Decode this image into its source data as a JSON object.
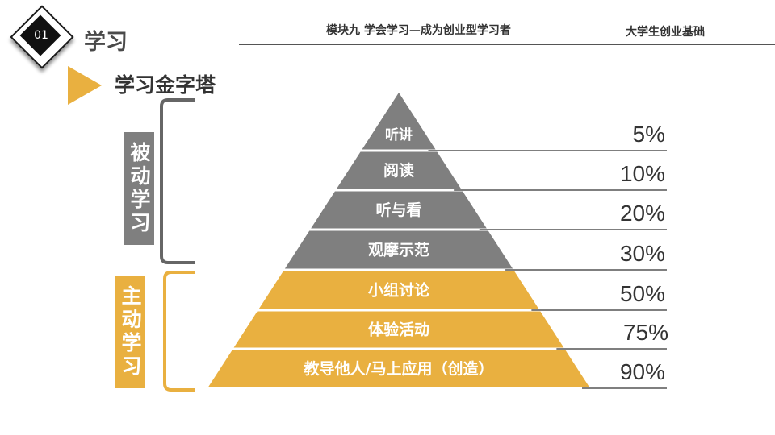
{
  "header": {
    "badge_number": "01",
    "section_title": "学习",
    "module_title": "模块九 学会学习—成为创业型学习者",
    "course_title": "大学生创业基础"
  },
  "subtitle": "学习金字塔",
  "labels": {
    "passive": "被动学习",
    "active": "主动学习"
  },
  "pyramid": [
    {
      "label": "听讲",
      "value": "5%",
      "group": "passive"
    },
    {
      "label": "阅读",
      "value": "10%",
      "group": "passive"
    },
    {
      "label": "听与看",
      "value": "20%",
      "group": "passive"
    },
    {
      "label": "观摩示范",
      "value": "30%",
      "group": "passive"
    },
    {
      "label": "小组讨论",
      "value": "50%",
      "group": "active"
    },
    {
      "label": "体验活动",
      "value": "75%",
      "group": "active"
    },
    {
      "label": "教导他人/马上应用（创造）",
      "value": "90%",
      "group": "active"
    }
  ],
  "colors": {
    "passive": "#7f7f7f",
    "active": "#e9b040",
    "bracket_passive": "#666666",
    "bracket_active": "#e9b040",
    "text": "#333333"
  }
}
